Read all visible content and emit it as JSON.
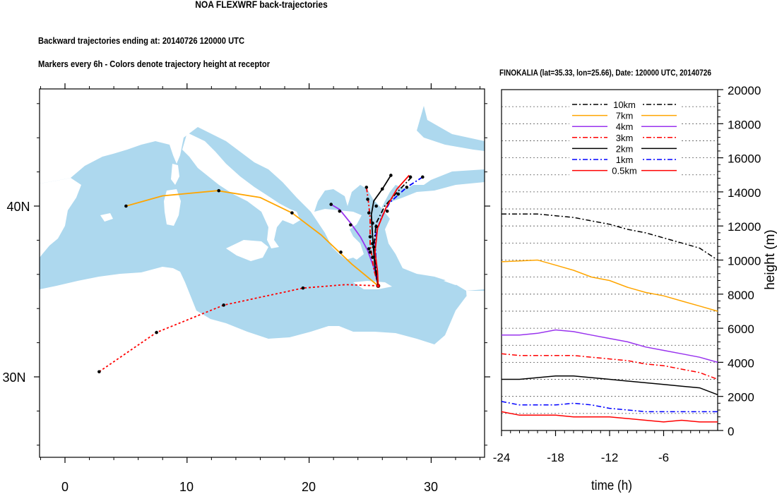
{
  "header": {
    "title": "NOA FLEXWRF back-trajectories",
    "subtitle1": "Backward trajectories ending at: 20140726  120000 UTC",
    "subtitle2": "Markers every 6h - Colors denote trajectory height at receptor"
  },
  "map": {
    "lon_ticks": [
      "0",
      "10",
      "20",
      "30"
    ],
    "lat_ticks": [
      "40N",
      "30N"
    ],
    "sea_color": "#add8ee",
    "land_color": "#ffffff",
    "receptor": {
      "lon": 25.66,
      "lat": 35.33
    },
    "trajectories": [
      {
        "height": "7km",
        "color": "#ffa500",
        "style": "solid",
        "points": [
          [
            5.0,
            40.0
          ],
          [
            8.0,
            40.6
          ],
          [
            12.5,
            40.9
          ],
          [
            16.0,
            40.5
          ],
          [
            18.6,
            39.6
          ],
          [
            21.0,
            38.3
          ],
          [
            23.5,
            36.6
          ],
          [
            25.66,
            35.33
          ]
        ]
      },
      {
        "height": "0.5km",
        "color": "#ff0000",
        "style": "dashed",
        "points": [
          [
            2.8,
            30.3
          ],
          [
            7.5,
            32.6
          ],
          [
            13.0,
            34.2
          ],
          [
            19.5,
            35.2
          ],
          [
            23.0,
            35.4
          ],
          [
            25.66,
            35.33
          ]
        ]
      },
      {
        "height": "4km",
        "color": "#9933ee",
        "style": "solid",
        "points": [
          [
            21.8,
            40.1
          ],
          [
            22.5,
            39.8
          ],
          [
            23.4,
            39.0
          ],
          [
            24.2,
            38.2
          ],
          [
            24.8,
            37.4
          ],
          [
            25.3,
            36.4
          ],
          [
            25.66,
            35.33
          ]
        ]
      },
      {
        "height": "3km",
        "color": "#ff0000",
        "style": "dashdot",
        "points": [
          [
            24.7,
            41.1
          ],
          [
            24.8,
            40.6
          ],
          [
            24.9,
            40.0
          ],
          [
            25.0,
            39.2
          ],
          [
            25.0,
            37.8
          ],
          [
            25.3,
            36.3
          ],
          [
            25.66,
            35.33
          ]
        ]
      },
      {
        "height": "2km",
        "color": "#000000",
        "style": "solid",
        "points": [
          [
            26.7,
            41.8
          ],
          [
            26.0,
            41.0
          ],
          [
            25.3,
            40.3
          ],
          [
            25.1,
            39.5
          ],
          [
            25.2,
            38.2
          ],
          [
            25.4,
            36.4
          ],
          [
            25.66,
            35.33
          ]
        ]
      },
      {
        "height": "1km",
        "color": "#0000ff",
        "style": "dashdot",
        "points": [
          [
            29.3,
            41.7
          ],
          [
            28.0,
            41.1
          ],
          [
            26.6,
            40.2
          ],
          [
            25.9,
            39.3
          ],
          [
            25.4,
            38.2
          ],
          [
            25.5,
            36.6
          ],
          [
            25.66,
            35.33
          ]
        ]
      },
      {
        "height": "10km",
        "color": "#000000",
        "style": "dashdot",
        "points": [
          [
            28.4,
            41.7
          ],
          [
            27.2,
            40.8
          ],
          [
            26.2,
            40.0
          ],
          [
            25.5,
            39.0
          ],
          [
            25.3,
            37.6
          ],
          [
            25.5,
            36.4
          ],
          [
            25.66,
            35.33
          ]
        ]
      },
      {
        "height": "0.5km-red",
        "color": "#ff0000",
        "style": "solid",
        "points": [
          [
            28.2,
            41.8
          ],
          [
            27.2,
            41.0
          ],
          [
            26.3,
            39.9
          ],
          [
            25.6,
            38.7
          ],
          [
            25.4,
            37.3
          ],
          [
            25.6,
            36.2
          ],
          [
            25.66,
            35.33
          ]
        ]
      }
    ],
    "markers": [
      [
        5.0,
        40.0
      ],
      [
        12.6,
        40.9
      ],
      [
        18.6,
        39.6
      ],
      [
        22.6,
        37.3
      ],
      [
        2.8,
        30.3
      ],
      [
        7.5,
        32.6
      ],
      [
        13.0,
        34.2
      ],
      [
        19.5,
        35.2
      ],
      [
        21.8,
        40.1
      ],
      [
        22.5,
        39.7
      ],
      [
        23.4,
        38.9
      ],
      [
        24.7,
        41.1
      ],
      [
        24.8,
        40.4
      ],
      [
        24.9,
        39.6
      ],
      [
        26.7,
        41.8
      ],
      [
        26.0,
        41.0
      ],
      [
        25.5,
        40.0
      ],
      [
        25.2,
        39.0
      ],
      [
        28.3,
        41.7
      ],
      [
        27.3,
        40.7
      ],
      [
        26.4,
        39.7
      ],
      [
        25.5,
        38.8
      ],
      [
        29.3,
        41.7
      ],
      [
        28.0,
        41.1
      ],
      [
        25.0,
        38.2
      ],
      [
        25.2,
        37.8
      ],
      [
        25.0,
        37.3
      ],
      [
        25.3,
        37.6
      ],
      [
        24.9,
        37.5
      ],
      [
        25.2,
        37.0
      ]
    ]
  },
  "profile": {
    "title": "FINOKALIA (lat=35.33,  lon=25.66), Date: 120000 UTC, 20140726",
    "xlabel": "time (h)",
    "ylabel": "height (m)",
    "x_ticks": [
      "-24",
      "-18",
      "-12",
      "-6"
    ],
    "y_ticks": [
      "0",
      "2000",
      "4000",
      "6000",
      "8000",
      "10000",
      "12000",
      "14000",
      "16000",
      "18000",
      "20000"
    ]
  },
  "chart_data": {
    "type": "line",
    "title": "FINOKALIA (lat=35.33,  lon=25.66), Date: 120000 UTC, 20140726",
    "xlabel": "time (h)",
    "ylabel": "height (m)",
    "xlim": [
      -24,
      0
    ],
    "ylim": [
      0,
      20000
    ],
    "legend_position": "top-center",
    "x": [
      -24,
      -22,
      -20,
      -18,
      -16,
      -14,
      -12,
      -10,
      -8,
      -6,
      -4,
      -2,
      0
    ],
    "series": [
      {
        "name": "10km",
        "color": "#000000",
        "style": "dashdot",
        "values": [
          12700,
          12700,
          12700,
          12600,
          12500,
          12300,
          12100,
          11800,
          11600,
          11300,
          11000,
          10700,
          10000
        ]
      },
      {
        "name": "7km",
        "color": "#ffa500",
        "style": "solid",
        "values": [
          9900,
          9950,
          10000,
          9700,
          9400,
          9000,
          8800,
          8400,
          8100,
          7900,
          7600,
          7300,
          7000
        ]
      },
      {
        "name": "4km",
        "color": "#9933ee",
        "style": "solid",
        "values": [
          5600,
          5600,
          5700,
          5900,
          5800,
          5600,
          5400,
          5200,
          4900,
          4700,
          4500,
          4300,
          4000
        ]
      },
      {
        "name": "3km",
        "color": "#ff0000",
        "style": "dashdot",
        "values": [
          4500,
          4400,
          4400,
          4400,
          4400,
          4300,
          4200,
          4100,
          3900,
          3800,
          3600,
          3400,
          3000
        ]
      },
      {
        "name": "2km",
        "color": "#000000",
        "style": "solid",
        "values": [
          3000,
          3000,
          3100,
          3200,
          3200,
          3100,
          3000,
          2900,
          2800,
          2700,
          2600,
          2500,
          2100
        ]
      },
      {
        "name": "1km",
        "color": "#0000ff",
        "style": "dashdot",
        "values": [
          1700,
          1500,
          1500,
          1500,
          1600,
          1500,
          1300,
          1200,
          1100,
          1100,
          1100,
          1100,
          1100
        ]
      },
      {
        "name": "0.5km",
        "color": "#ff0000",
        "style": "solid",
        "values": [
          1100,
          900,
          900,
          900,
          800,
          800,
          800,
          700,
          600,
          500,
          600,
          500,
          500
        ]
      }
    ]
  }
}
